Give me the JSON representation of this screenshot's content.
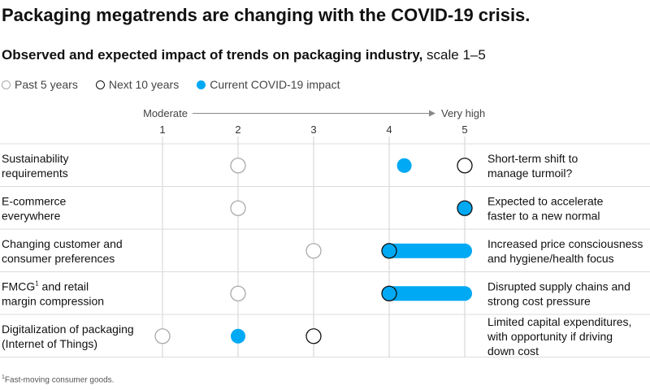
{
  "chart_data": {
    "type": "scatter",
    "title": "Packaging megatrends are changing with the COVID-19 crisis.",
    "subtitle_bold": "Observed and expected impact of trends on packaging industry,",
    "subtitle_rest": " scale 1–5",
    "axis": {
      "min_label": "Moderate",
      "max_label": "Very high",
      "ticks": [
        "1",
        "2",
        "3",
        "4",
        "5"
      ],
      "range": [
        1,
        5
      ]
    },
    "legend": [
      {
        "name": "Past 5 years",
        "key": "past",
        "color": "#aaaaaa"
      },
      {
        "name": "Next 10 years",
        "key": "next",
        "color": "#111111"
      },
      {
        "name": "Current COVID-19 impact",
        "key": "covid",
        "color": "#00a9f4"
      }
    ],
    "rows": [
      {
        "label": [
          "Sustainability",
          "requirements"
        ],
        "past": 2,
        "next": 5,
        "covid": 4.2,
        "note": [
          "Short-term shift to",
          "manage turmoil?"
        ]
      },
      {
        "label": [
          "E-commerce",
          "everywhere"
        ],
        "past": 2,
        "next": 5,
        "covid": 5,
        "note": [
          "Expected to accelerate",
          "faster to a new normal"
        ]
      },
      {
        "label": [
          "Changing customer and",
          "consumer preferences"
        ],
        "past": 3,
        "next": 4,
        "covid": 5,
        "note": [
          "Increased price consciousness",
          "and hygiene/health focus"
        ]
      },
      {
        "label": [
          "FMCG",
          "margin compression"
        ],
        "label_sup": "1",
        "label_first_rest": " and retail",
        "past": 2,
        "next": 4,
        "covid": 5,
        "note": [
          "Disrupted supply chains and",
          "strong cost pressure"
        ]
      },
      {
        "label": [
          "Digitalization of packaging",
          "(Internet of Things)"
        ],
        "past": 1,
        "next": 3,
        "covid": 2,
        "note": [
          "Limited capital expenditures,",
          "with opportunity if driving",
          "down cost"
        ]
      }
    ]
  },
  "footnote_sup": "1",
  "footnote": "Fast-moving consumer goods."
}
